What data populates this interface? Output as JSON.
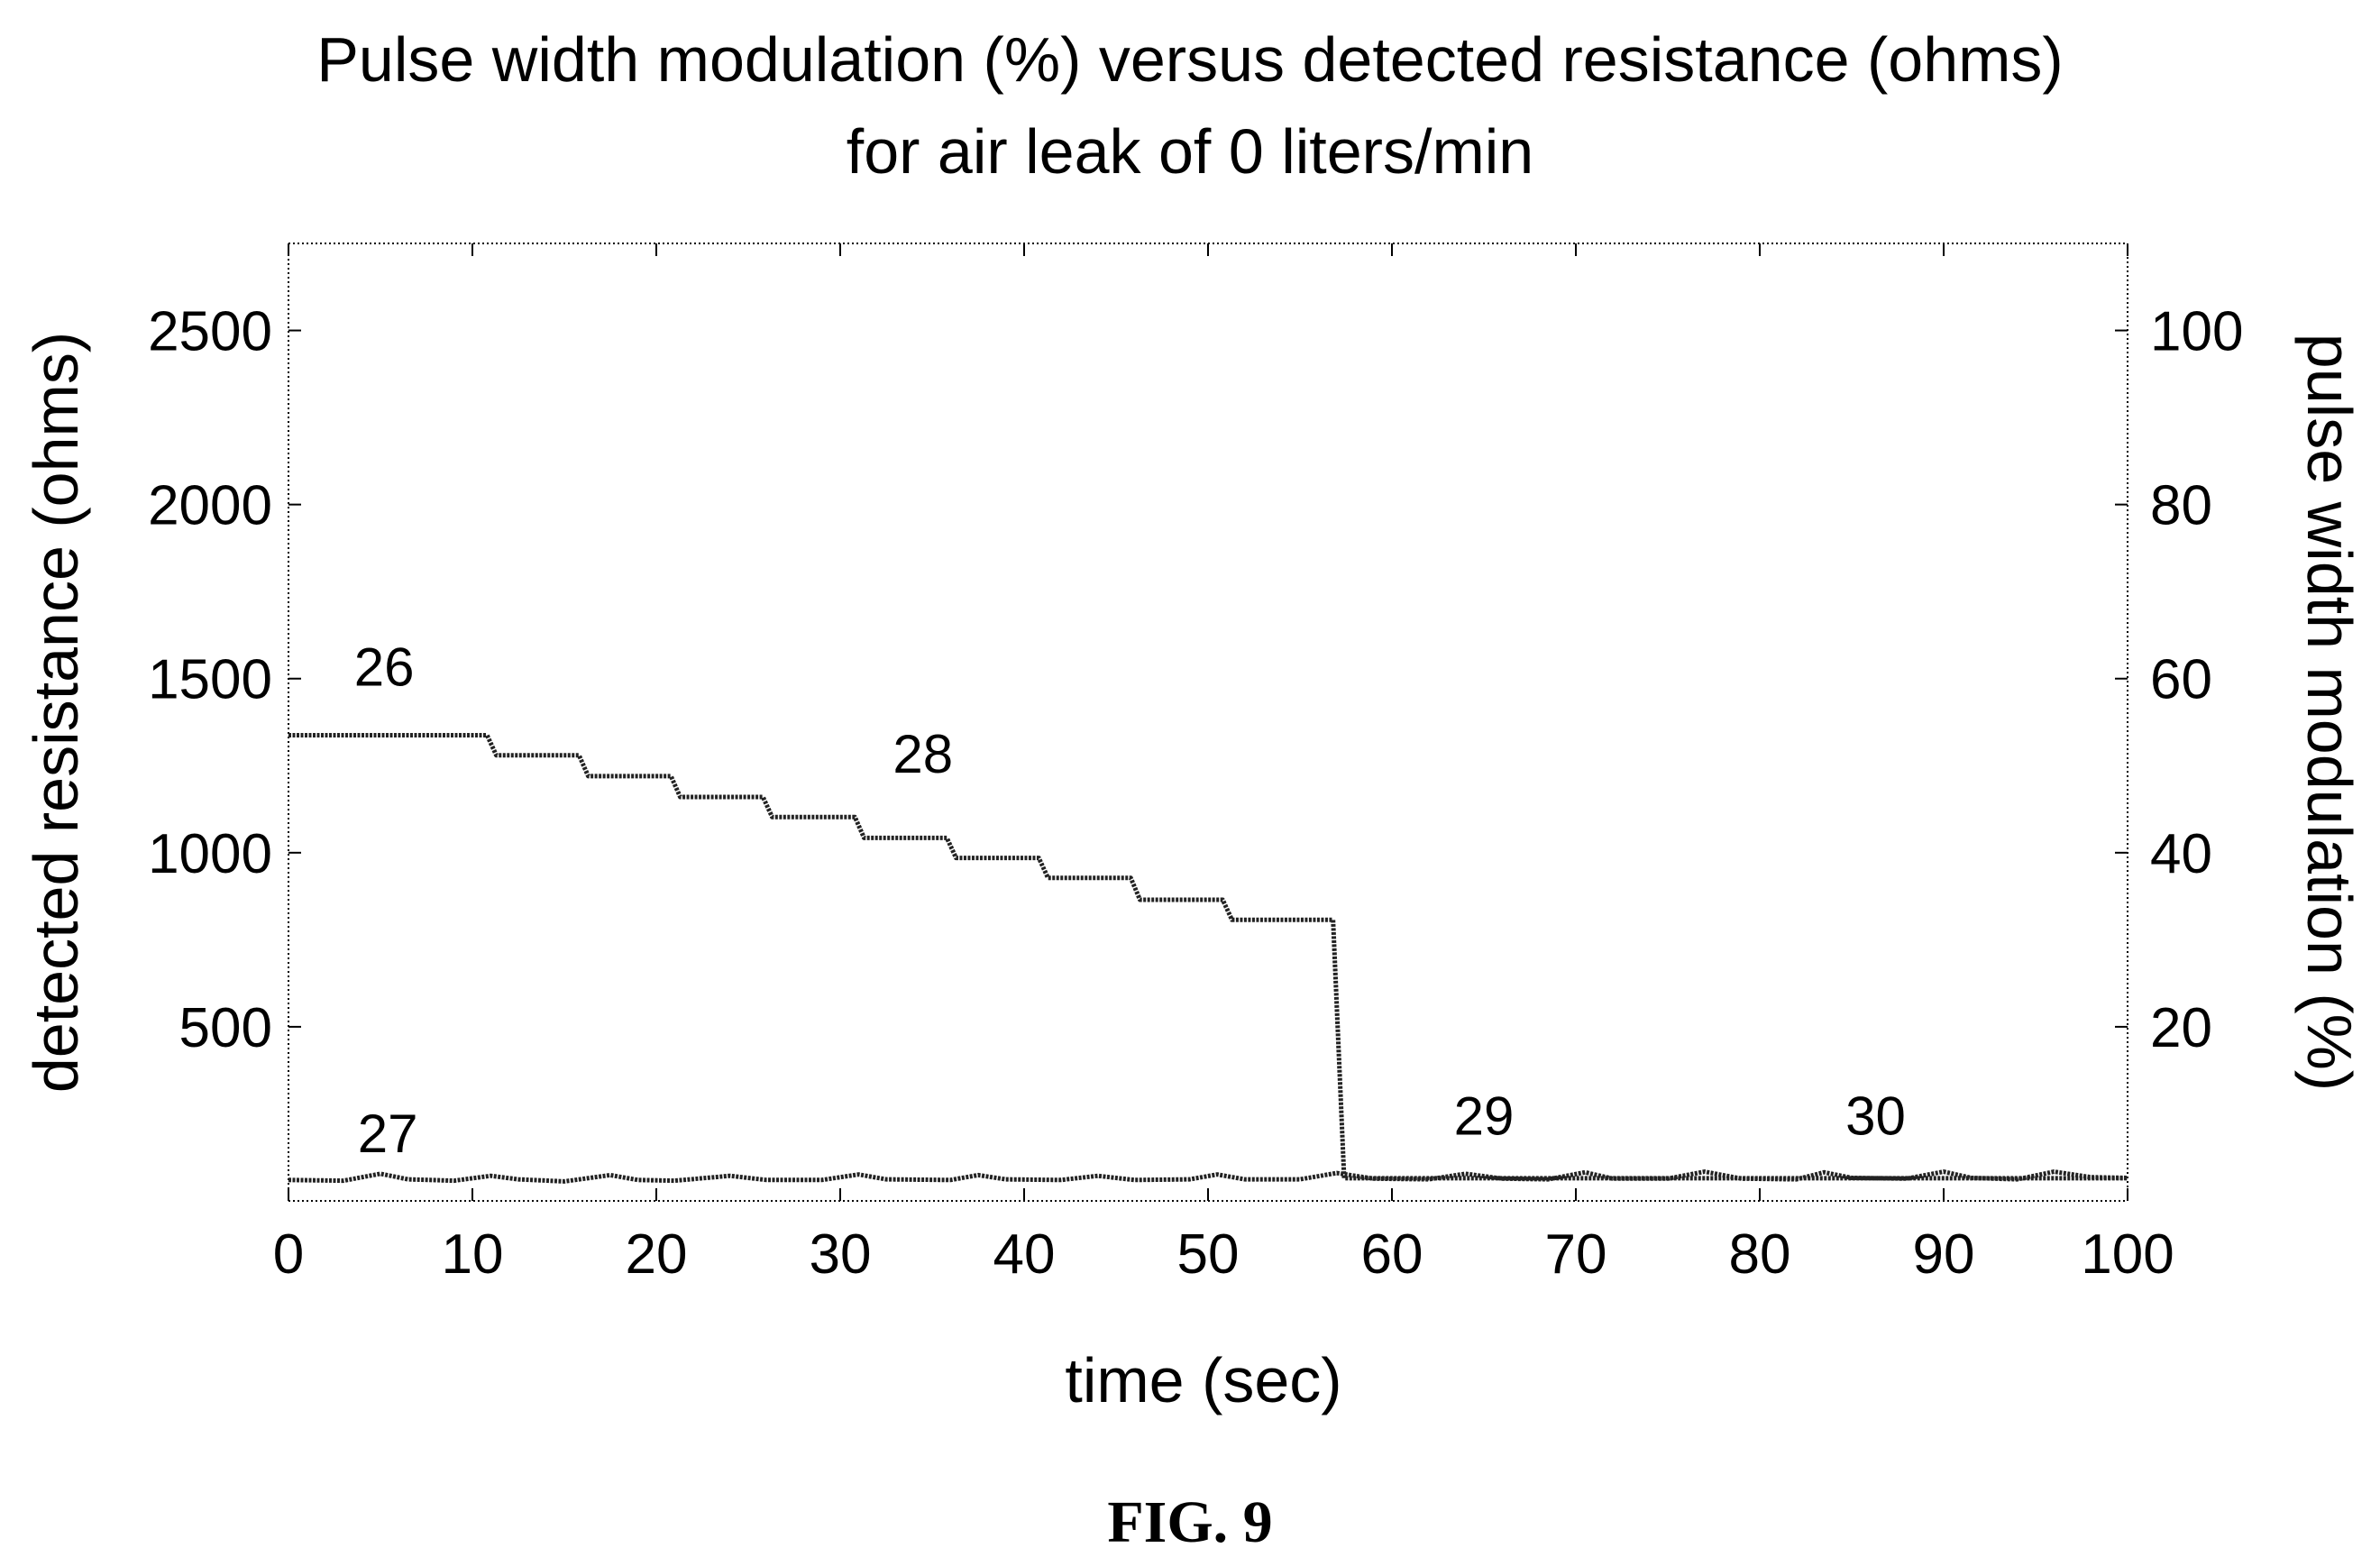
{
  "chart_data": {
    "type": "line",
    "title_line1": "Pulse width modulation (%) versus detected resistance (ohms)",
    "title_line2": "for air leak of 0 liters/min",
    "xlabel": "time (sec)",
    "ylabel_left": "detected resistance (ohms)",
    "ylabel_right": "pulse width modulation (%)",
    "xlim": [
      0,
      100
    ],
    "ylim_left": [
      0,
      2750
    ],
    "ylim_right": [
      0,
      110
    ],
    "x_ticks": [
      0,
      10,
      20,
      30,
      40,
      50,
      60,
      70,
      80,
      90,
      100
    ],
    "y_ticks_left": [
      500,
      1000,
      1500,
      2000,
      2500
    ],
    "y_ticks_right": [
      20,
      40,
      60,
      80,
      100
    ],
    "grid": false,
    "series": [
      {
        "axis": "right",
        "points": [
          [
            0,
            53.5
          ],
          [
            10.8,
            53.5
          ],
          [
            11.3,
            51.2
          ],
          [
            15.8,
            51.2
          ],
          [
            16.3,
            48.8
          ],
          [
            20.8,
            48.8
          ],
          [
            21.3,
            46.4
          ],
          [
            25.8,
            46.4
          ],
          [
            26.3,
            44.1
          ],
          [
            30.8,
            44.1
          ],
          [
            31.3,
            41.7
          ],
          [
            35.8,
            41.7
          ],
          [
            36.3,
            39.4
          ],
          [
            40.8,
            39.4
          ],
          [
            41.3,
            37.1
          ],
          [
            45.8,
            37.1
          ],
          [
            46.3,
            34.6
          ],
          [
            50.8,
            34.6
          ],
          [
            51.3,
            32.3
          ],
          [
            56.8,
            32.3
          ],
          [
            57.4,
            2.6
          ],
          [
            100,
            2.6
          ]
        ]
      },
      {
        "axis": "left",
        "points": [
          [
            0,
            60
          ],
          [
            3,
            58
          ],
          [
            5,
            78
          ],
          [
            6.5,
            62
          ],
          [
            9,
            58
          ],
          [
            11,
            72
          ],
          [
            12.5,
            62
          ],
          [
            15,
            56
          ],
          [
            17.5,
            74
          ],
          [
            19,
            60
          ],
          [
            21,
            58
          ],
          [
            24,
            72
          ],
          [
            26,
            60
          ],
          [
            29,
            60
          ],
          [
            31,
            76
          ],
          [
            32.5,
            62
          ],
          [
            36,
            60
          ],
          [
            37.5,
            74
          ],
          [
            39,
            62
          ],
          [
            42,
            60
          ],
          [
            44,
            72
          ],
          [
            46,
            60
          ],
          [
            49,
            62
          ],
          [
            50.5,
            76
          ],
          [
            52,
            62
          ],
          [
            55,
            62
          ],
          [
            57,
            80
          ],
          [
            59,
            64
          ],
          [
            62,
            62
          ],
          [
            64,
            78
          ],
          [
            66,
            64
          ],
          [
            68.5,
            62
          ],
          [
            70.5,
            82
          ],
          [
            72,
            64
          ],
          [
            75,
            64
          ],
          [
            77,
            84
          ],
          [
            79,
            64
          ],
          [
            82,
            62
          ],
          [
            83.5,
            82
          ],
          [
            85,
            66
          ],
          [
            88,
            64
          ],
          [
            90,
            84
          ],
          [
            91.5,
            66
          ],
          [
            94,
            62
          ],
          [
            96,
            84
          ],
          [
            98,
            68
          ],
          [
            100,
            66
          ]
        ]
      }
    ],
    "annotations": [
      {
        "text": "26",
        "x": 5.2,
        "y": 1480,
        "axis": "left"
      },
      {
        "text": "27",
        "x": 5.4,
        "y": 140,
        "axis": "left"
      },
      {
        "text": "28",
        "x": 34.5,
        "y": 1230,
        "axis": "left"
      },
      {
        "text": "29",
        "x": 65,
        "y": 190,
        "axis": "left"
      },
      {
        "text": "30",
        "x": 86.3,
        "y": 190,
        "axis": "left"
      }
    ]
  },
  "figure_label": "FIG. 9"
}
